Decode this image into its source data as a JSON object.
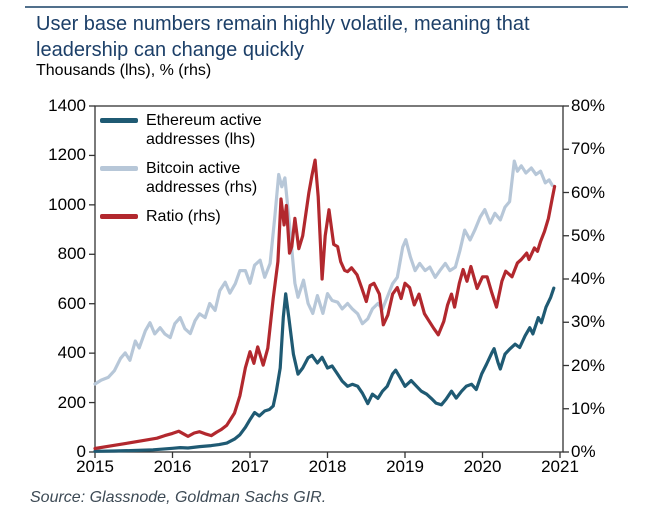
{
  "colors": {
    "title": "#1c3f68",
    "top_rule": "#51708c",
    "axis": "#333333",
    "ethereum_line": "#1f5a73",
    "bitcoin_line": "#b7c7d8",
    "ratio_line": "#b2282e",
    "source_text": "#3d4a55"
  },
  "chart_data": {
    "type": "line",
    "title": "User base numbers remain highly volatile, meaning that leadership can change quickly",
    "title_line1": "User base numbers remain highly volatile, meaning that",
    "title_line2": "leadership can change quickly",
    "subtitle": "Thousands (lhs), % (rhs)",
    "source": "Source: Glassnode, Goldman Sachs GIR.",
    "grid": false,
    "legend_position": "top-left-inside",
    "legend_order": [
      "ethereum",
      "bitcoin",
      "ratio"
    ],
    "x_axis": {
      "ticks": [
        2015,
        2016,
        2017,
        2018,
        2019,
        2020,
        2021
      ],
      "range": [
        2015,
        2021.04
      ]
    },
    "y_left": {
      "label": "Thousands (lhs)",
      "ticks": [
        0,
        200,
        400,
        600,
        800,
        1000,
        1200,
        1400
      ],
      "range": [
        0,
        1400
      ]
    },
    "y_right": {
      "label": "% (rhs)",
      "ticks": [
        0,
        10,
        20,
        30,
        40,
        50,
        60,
        70,
        80
      ],
      "tick_labels": [
        "0%",
        "10%",
        "20%",
        "30%",
        "40%",
        "50%",
        "60%",
        "70%",
        "80%"
      ],
      "range": [
        0,
        80
      ]
    },
    "series": [
      {
        "id": "bitcoin",
        "label": "Bitcoin active addresses (rhs)",
        "color": "#b7c7d8",
        "axis": "left",
        "points": [
          [
            2015.0,
            275
          ],
          [
            2015.08,
            291
          ],
          [
            2015.17,
            302
          ],
          [
            2015.25,
            329
          ],
          [
            2015.33,
            379
          ],
          [
            2015.39,
            401
          ],
          [
            2015.45,
            371
          ],
          [
            2015.52,
            449
          ],
          [
            2015.57,
            421
          ],
          [
            2015.65,
            491
          ],
          [
            2015.71,
            523
          ],
          [
            2015.77,
            478
          ],
          [
            2015.84,
            503
          ],
          [
            2015.9,
            478
          ],
          [
            2015.97,
            463
          ],
          [
            2016.03,
            519
          ],
          [
            2016.1,
            544
          ],
          [
            2016.16,
            499
          ],
          [
            2016.23,
            479
          ],
          [
            2016.29,
            531
          ],
          [
            2016.35,
            559
          ],
          [
            2016.42,
            544
          ],
          [
            2016.48,
            601
          ],
          [
            2016.55,
            573
          ],
          [
            2016.61,
            653
          ],
          [
            2016.68,
            687
          ],
          [
            2016.74,
            643
          ],
          [
            2016.81,
            681
          ],
          [
            2016.87,
            734
          ],
          [
            2016.94,
            734
          ],
          [
            2017.0,
            683
          ],
          [
            2017.06,
            756
          ],
          [
            2017.13,
            776
          ],
          [
            2017.19,
            707
          ],
          [
            2017.26,
            763
          ],
          [
            2017.32,
            951
          ],
          [
            2017.37,
            1123
          ],
          [
            2017.41,
            1073
          ],
          [
            2017.45,
            1109
          ],
          [
            2017.52,
            886
          ],
          [
            2017.58,
            683
          ],
          [
            2017.62,
            626
          ],
          [
            2017.69,
            695
          ],
          [
            2017.75,
            601
          ],
          [
            2017.81,
            561
          ],
          [
            2017.87,
            633
          ],
          [
            2017.94,
            561
          ],
          [
            2018.0,
            641
          ],
          [
            2018.06,
            613
          ],
          [
            2018.13,
            606
          ],
          [
            2018.19,
            579
          ],
          [
            2018.26,
            601
          ],
          [
            2018.32,
            579
          ],
          [
            2018.39,
            559
          ],
          [
            2018.45,
            519
          ],
          [
            2018.52,
            539
          ],
          [
            2018.58,
            579
          ],
          [
            2018.65,
            601
          ],
          [
            2018.71,
            579
          ],
          [
            2018.77,
            626
          ],
          [
            2018.84,
            681
          ],
          [
            2018.9,
            707
          ],
          [
            2018.97,
            829
          ],
          [
            2019.01,
            859
          ],
          [
            2019.07,
            789
          ],
          [
            2019.13,
            734
          ],
          [
            2019.19,
            763
          ],
          [
            2019.26,
            734
          ],
          [
            2019.32,
            748
          ],
          [
            2019.39,
            707
          ],
          [
            2019.45,
            734
          ],
          [
            2019.52,
            763
          ],
          [
            2019.58,
            734
          ],
          [
            2019.65,
            748
          ],
          [
            2019.71,
            816
          ],
          [
            2019.77,
            898
          ],
          [
            2019.84,
            858
          ],
          [
            2019.9,
            898
          ],
          [
            2019.97,
            951
          ],
          [
            2020.03,
            981
          ],
          [
            2020.1,
            926
          ],
          [
            2020.16,
            966
          ],
          [
            2020.23,
            939
          ],
          [
            2020.29,
            991
          ],
          [
            2020.35,
            1013
          ],
          [
            2020.41,
            1177
          ],
          [
            2020.45,
            1136
          ],
          [
            2020.5,
            1158
          ],
          [
            2020.56,
            1129
          ],
          [
            2020.63,
            1149
          ],
          [
            2020.69,
            1123
          ],
          [
            2020.75,
            1136
          ],
          [
            2020.81,
            1089
          ],
          [
            2020.86,
            1101
          ],
          [
            2020.9,
            1079
          ]
        ]
      },
      {
        "id": "ethereum",
        "label": "Ethereum active addresses (lhs)",
        "color": "#1f5a73",
        "axis": "left",
        "points": [
          [
            2015.0,
            3
          ],
          [
            2015.25,
            4
          ],
          [
            2015.5,
            6
          ],
          [
            2015.75,
            9
          ],
          [
            2016.0,
            15
          ],
          [
            2016.1,
            18
          ],
          [
            2016.2,
            16
          ],
          [
            2016.35,
            22
          ],
          [
            2016.5,
            26
          ],
          [
            2016.6,
            30
          ],
          [
            2016.7,
            36
          ],
          [
            2016.8,
            52
          ],
          [
            2016.87,
            70
          ],
          [
            2016.94,
            100
          ],
          [
            2017.0,
            131
          ],
          [
            2017.06,
            160
          ],
          [
            2017.12,
            146
          ],
          [
            2017.19,
            166
          ],
          [
            2017.25,
            172
          ],
          [
            2017.3,
            186
          ],
          [
            2017.34,
            245
          ],
          [
            2017.39,
            340
          ],
          [
            2017.43,
            545
          ],
          [
            2017.46,
            640
          ],
          [
            2017.5,
            545
          ],
          [
            2017.56,
            396
          ],
          [
            2017.62,
            315
          ],
          [
            2017.68,
            340
          ],
          [
            2017.75,
            381
          ],
          [
            2017.8,
            391
          ],
          [
            2017.87,
            360
          ],
          [
            2017.93,
            383
          ],
          [
            2018.0,
            340
          ],
          [
            2018.06,
            348
          ],
          [
            2018.13,
            315
          ],
          [
            2018.19,
            287
          ],
          [
            2018.26,
            266
          ],
          [
            2018.32,
            274
          ],
          [
            2018.39,
            266
          ],
          [
            2018.45,
            238
          ],
          [
            2018.52,
            196
          ],
          [
            2018.58,
            234
          ],
          [
            2018.65,
            217
          ],
          [
            2018.71,
            246
          ],
          [
            2018.77,
            266
          ],
          [
            2018.84,
            316
          ],
          [
            2018.88,
            331
          ],
          [
            2018.94,
            299
          ],
          [
            2019.0,
            266
          ],
          [
            2019.08,
            289
          ],
          [
            2019.15,
            266
          ],
          [
            2019.21,
            246
          ],
          [
            2019.28,
            234
          ],
          [
            2019.34,
            217
          ],
          [
            2019.4,
            198
          ],
          [
            2019.47,
            191
          ],
          [
            2019.53,
            214
          ],
          [
            2019.6,
            246
          ],
          [
            2019.66,
            218
          ],
          [
            2019.73,
            246
          ],
          [
            2019.79,
            266
          ],
          [
            2019.86,
            274
          ],
          [
            2019.92,
            253
          ],
          [
            2019.99,
            316
          ],
          [
            2020.05,
            354
          ],
          [
            2020.12,
            401
          ],
          [
            2020.15,
            418
          ],
          [
            2020.2,
            362
          ],
          [
            2020.23,
            336
          ],
          [
            2020.29,
            396
          ],
          [
            2020.35,
            416
          ],
          [
            2020.42,
            436
          ],
          [
            2020.48,
            423
          ],
          [
            2020.55,
            470
          ],
          [
            2020.61,
            503
          ],
          [
            2020.65,
            478
          ],
          [
            2020.72,
            544
          ],
          [
            2020.76,
            523
          ],
          [
            2020.82,
            586
          ],
          [
            2020.88,
            626
          ],
          [
            2020.92,
            663
          ]
        ]
      },
      {
        "id": "ratio",
        "label": "Ratio (rhs)",
        "color": "#b2282e",
        "axis": "right",
        "points": [
          [
            2015.0,
            0.8
          ],
          [
            2015.2,
            1.4
          ],
          [
            2015.4,
            2.0
          ],
          [
            2015.6,
            2.6
          ],
          [
            2015.8,
            3.2
          ],
          [
            2015.9,
            3.8
          ],
          [
            2016.0,
            4.3
          ],
          [
            2016.08,
            4.8
          ],
          [
            2016.14,
            4.2
          ],
          [
            2016.2,
            3.6
          ],
          [
            2016.28,
            4.4
          ],
          [
            2016.35,
            4.7
          ],
          [
            2016.42,
            4.2
          ],
          [
            2016.5,
            3.8
          ],
          [
            2016.57,
            4.6
          ],
          [
            2016.63,
            5.2
          ],
          [
            2016.7,
            6.2
          ],
          [
            2016.8,
            9.0
          ],
          [
            2016.87,
            13.0
          ],
          [
            2016.94,
            19.5
          ],
          [
            2017.0,
            23.2
          ],
          [
            2017.05,
            20.5
          ],
          [
            2017.1,
            24.3
          ],
          [
            2017.17,
            20.1
          ],
          [
            2017.23,
            24.0
          ],
          [
            2017.3,
            35.5
          ],
          [
            2017.36,
            44.0
          ],
          [
            2017.4,
            58.5
          ],
          [
            2017.44,
            52.5
          ],
          [
            2017.47,
            57.0
          ],
          [
            2017.51,
            46.0
          ],
          [
            2017.54,
            47.5
          ],
          [
            2017.58,
            54.0
          ],
          [
            2017.63,
            47.0
          ],
          [
            2017.68,
            50.0
          ],
          [
            2017.72,
            55.0
          ],
          [
            2017.76,
            60.0
          ],
          [
            2017.8,
            64.0
          ],
          [
            2017.84,
            67.5
          ],
          [
            2017.88,
            59.0
          ],
          [
            2017.93,
            40.0
          ],
          [
            2017.97,
            50.0
          ],
          [
            2018.02,
            56.0
          ],
          [
            2018.08,
            48.0
          ],
          [
            2018.13,
            47.5
          ],
          [
            2018.17,
            44.0
          ],
          [
            2018.22,
            42.0
          ],
          [
            2018.26,
            41.7
          ],
          [
            2018.31,
            42.6
          ],
          [
            2018.38,
            41.0
          ],
          [
            2018.44,
            38.0
          ],
          [
            2018.5,
            34.8
          ],
          [
            2018.55,
            38.5
          ],
          [
            2018.6,
            39.0
          ],
          [
            2018.67,
            36.5
          ],
          [
            2018.72,
            29.4
          ],
          [
            2018.78,
            31.7
          ],
          [
            2018.84,
            36.5
          ],
          [
            2018.9,
            38.0
          ],
          [
            2018.95,
            35.5
          ],
          [
            2019.0,
            39.0
          ],
          [
            2019.06,
            38.0
          ],
          [
            2019.12,
            34.0
          ],
          [
            2019.18,
            36.5
          ],
          [
            2019.25,
            32.0
          ],
          [
            2019.3,
            30.6
          ],
          [
            2019.37,
            28.6
          ],
          [
            2019.43,
            27.1
          ],
          [
            2019.5,
            30.2
          ],
          [
            2019.55,
            34.0
          ],
          [
            2019.6,
            36.5
          ],
          [
            2019.64,
            33.5
          ],
          [
            2019.7,
            39.0
          ],
          [
            2019.75,
            42.2
          ],
          [
            2019.8,
            39.5
          ],
          [
            2019.85,
            42.9
          ],
          [
            2019.93,
            37.8
          ],
          [
            2020.0,
            40.5
          ],
          [
            2020.06,
            40.5
          ],
          [
            2020.12,
            36.8
          ],
          [
            2020.18,
            33.5
          ],
          [
            2020.25,
            39.5
          ],
          [
            2020.3,
            41.8
          ],
          [
            2020.38,
            40.5
          ],
          [
            2020.45,
            43.7
          ],
          [
            2020.5,
            44.5
          ],
          [
            2020.57,
            46.0
          ],
          [
            2020.6,
            44.5
          ],
          [
            2020.67,
            47.2
          ],
          [
            2020.71,
            46.4
          ],
          [
            2020.75,
            48.7
          ],
          [
            2020.8,
            51.0
          ],
          [
            2020.85,
            54.0
          ],
          [
            2020.9,
            58.7
          ],
          [
            2020.93,
            61.4
          ]
        ]
      }
    ]
  }
}
